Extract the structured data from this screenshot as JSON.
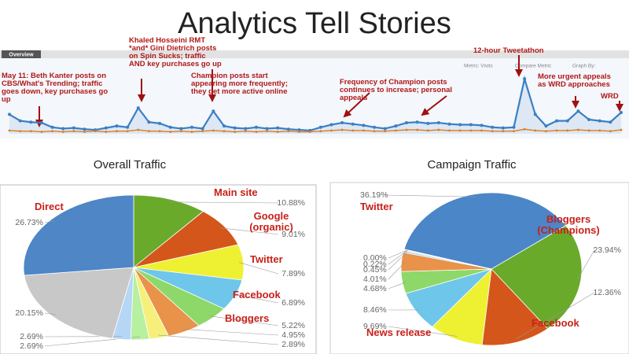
{
  "title": "Analytics Tell Stories",
  "analytics_toolbar": {
    "tab": "Overview",
    "metric": "Metric: Visits",
    "compare": "Compare Metric",
    "graph_by": "Graph By:"
  },
  "chart_data": [
    {
      "type": "line",
      "ylim": [
        0,
        100
      ],
      "series": [
        {
          "name": "Visits",
          "color": "#3a7fc4",
          "values": [
            30,
            20,
            18,
            17,
            10,
            8,
            9,
            7,
            6,
            9,
            12,
            10,
            40,
            18,
            16,
            10,
            8,
            10,
            8,
            35,
            12,
            9,
            8,
            10,
            8,
            9,
            7,
            6,
            5,
            10,
            14,
            17,
            15,
            13,
            10,
            8,
            12,
            17,
            18,
            16,
            17,
            15,
            14,
            14,
            13,
            10,
            9,
            10,
            85,
            30,
            12,
            20,
            20,
            35,
            22,
            20,
            18,
            33
          ]
        },
        {
          "name": "Compare",
          "color": "#e07b1a",
          "values": [
            5,
            4,
            4,
            3,
            4,
            3,
            4,
            3,
            4,
            3,
            4,
            4,
            6,
            4,
            4,
            3,
            4,
            3,
            4,
            5,
            4,
            3,
            4,
            3,
            4,
            3,
            4,
            3,
            3,
            4,
            5,
            6,
            5,
            5,
            4,
            4,
            5,
            6,
            6,
            5,
            6,
            5,
            5,
            5,
            5,
            4,
            4,
            4,
            7,
            5,
            4,
            5,
            5,
            6,
            5,
            5,
            4,
            6
          ]
        }
      ],
      "annotations": [
        "May 11: Beth Kanter posts on CBS/What's Trending; traffic goes down, key purchases go up",
        "Khaled Hosseini RMT *and* Gini Dietrich posts on Spin Sucks; traffic AND key purchases go up",
        "Champion posts start appearing more frequently; they get more active online",
        "Frequency of Champion posts continues to increase; personal appeals",
        "12-hour Tweetathon",
        "More urgent appeals as WRD approaches",
        "WRD"
      ]
    },
    {
      "type": "pie",
      "title": "Overall Traffic",
      "categories": [
        "Main site",
        "Google (organic)",
        "Twitter",
        "Facebook",
        "Bloggers",
        null,
        null,
        null,
        null,
        null,
        "Direct"
      ],
      "values": [
        10.88,
        9.01,
        7.89,
        6.89,
        5.22,
        4.95,
        2.89,
        2.69,
        2.69,
        20.15,
        26.73
      ],
      "value_labels": [
        "10.88%",
        "9.01%",
        "7.89%",
        "6.89%",
        "5.22%",
        "4.95%",
        "2.89%",
        "2.69%",
        "2.69%",
        "20.15%",
        "26.73%"
      ],
      "colors": [
        "#6aaa2a",
        "#d4561a",
        "#eef032",
        "#6ec6ea",
        "#8ed86a",
        "#e8924a",
        "#f6f07a",
        "#b6f0a0",
        "#b6d6f6",
        "#c8c8c8",
        "#4e86c6"
      ]
    },
    {
      "type": "pie",
      "title": "Campaign Traffic",
      "categories": [
        "Twitter",
        "Bloggers (Champions)",
        "Facebook",
        "News release",
        null,
        null,
        null,
        null,
        null,
        null
      ],
      "values": [
        36.19,
        23.94,
        12.36,
        9.69,
        8.46,
        4.68,
        4.01,
        0.45,
        0.22,
        0.0
      ],
      "value_labels": [
        "36.19%",
        "23.94%",
        "12.36%",
        "9.69%",
        "8.46%",
        "4.68%",
        "4.01%",
        "0.45%",
        "0.22%",
        "0.00%"
      ],
      "colors": [
        "#4a86c8",
        "#6aaa2a",
        "#d4561a",
        "#eef032",
        "#6ec6ea",
        "#8ed86a",
        "#e8924a",
        "#b6d6f6",
        "#f6f07a",
        "#c8c8c8"
      ]
    }
  ]
}
